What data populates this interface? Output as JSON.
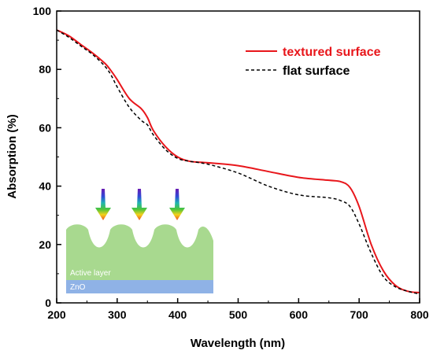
{
  "colors": {
    "textured": "#e8161b",
    "flat": "#000000",
    "active_layer": "#a8d98f",
    "zno": "#8fb2e6"
  },
  "inset": {
    "active_layer_label": "Active layer",
    "zno_label": "ZnO",
    "arrow_icon": "rainbow-down-arrow-icon"
  },
  "chart_data": {
    "type": "line",
    "title": "",
    "xlabel": "Wavelength (nm)",
    "ylabel": "Absorption (%)",
    "xlim": [
      200,
      800
    ],
    "ylim": [
      0,
      100
    ],
    "xticks": [
      200,
      300,
      400,
      500,
      600,
      700,
      800
    ],
    "yticks": [
      0,
      20,
      40,
      60,
      80,
      100
    ],
    "grid": false,
    "legend_position": "top-right",
    "series": [
      {
        "name": "textured surface",
        "style": "solid",
        "x": [
          200,
          220,
          240,
          260,
          280,
          290,
          300,
          320,
          340,
          350,
          360,
          380,
          400,
          420,
          450,
          500,
          550,
          600,
          650,
          670,
          685,
          700,
          720,
          740,
          760,
          780,
          800
        ],
        "values": [
          93.5,
          91.5,
          88.5,
          85.5,
          82,
          79.5,
          76.5,
          70,
          66.5,
          63.5,
          59,
          53.5,
          50,
          48.5,
          48,
          47,
          45,
          43,
          42,
          41.5,
          39.5,
          33,
          20,
          11,
          6,
          4,
          3.5
        ]
      },
      {
        "name": "flat surface",
        "style": "dashed",
        "x": [
          200,
          220,
          240,
          260,
          280,
          290,
          300,
          320,
          340,
          350,
          360,
          380,
          400,
          420,
          450,
          500,
          550,
          600,
          650,
          670,
          685,
          700,
          720,
          740,
          760,
          780,
          800
        ],
        "values": [
          93.5,
          91,
          88,
          85,
          81,
          78,
          74,
          67,
          62.5,
          61,
          57.5,
          52.5,
          49.5,
          48.5,
          47.5,
          44.5,
          40,
          37,
          36,
          35,
          33,
          27,
          17,
          9,
          5.5,
          4,
          3
        ]
      }
    ]
  }
}
